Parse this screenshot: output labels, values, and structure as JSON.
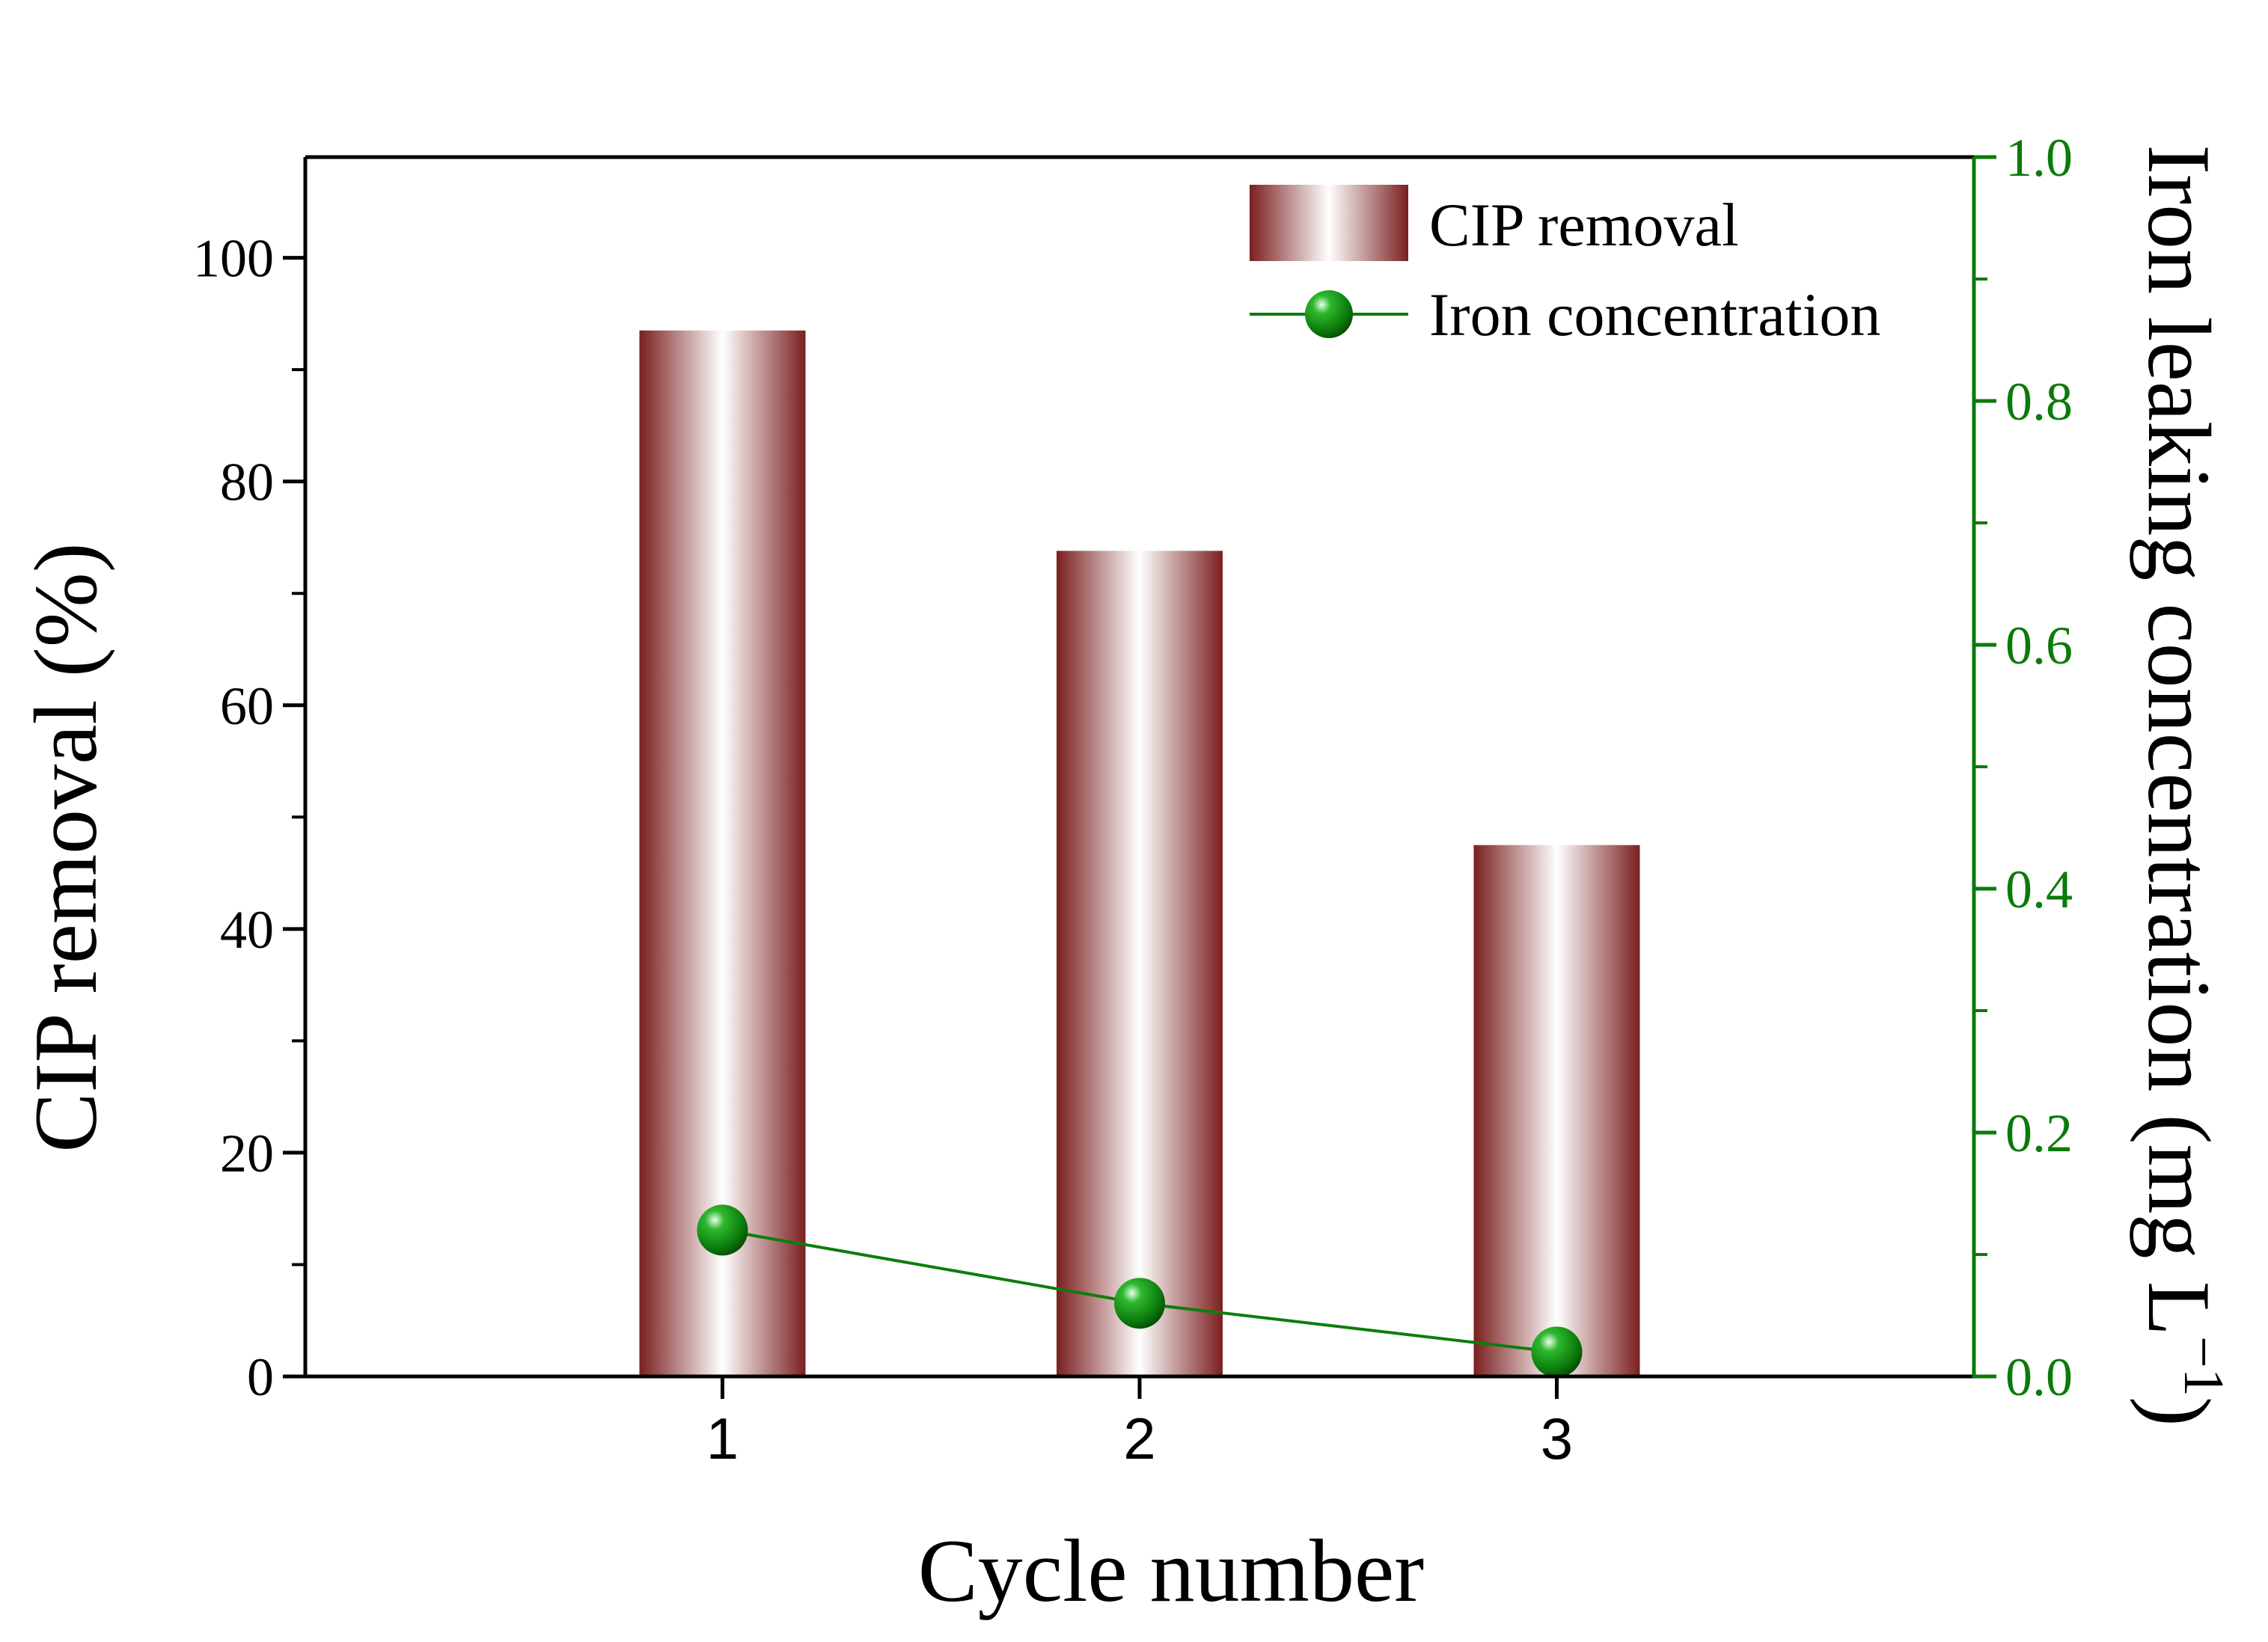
{
  "chart_data": {
    "type": "bar",
    "categories": [
      "1",
      "2",
      "3"
    ],
    "series": [
      {
        "name": "CIP removal",
        "type": "bar",
        "axis": "left",
        "values": [
          93.5,
          73.8,
          47.5
        ]
      },
      {
        "name": "Iron concentration",
        "type": "line",
        "axis": "right",
        "values": [
          0.12,
          0.06,
          0.02
        ]
      }
    ],
    "xlabel": "Cycle number",
    "ylabel": "CIP removal  (%)",
    "y2label": "Iron leaking concentration (mg L",
    "y2label_sup": "−1",
    "y2label_close": ")",
    "xlim": [
      0,
      4
    ],
    "ylim": [
      0,
      109
    ],
    "y2lim": [
      0,
      1.0
    ],
    "yticks": [
      0,
      20,
      40,
      60,
      80,
      100
    ],
    "ytick_labels": [
      "0",
      "20",
      "40",
      "60",
      "80",
      "100"
    ],
    "y2ticks": [
      0.0,
      0.2,
      0.4,
      0.6,
      0.8,
      1.0
    ],
    "y2tick_labels": [
      "0.0",
      "0.2",
      "0.4",
      "0.6",
      "0.8",
      "1.0"
    ],
    "legend_position": "top-right",
    "colors": {
      "bar_edge": "#7b1f1f",
      "bar_center": "#ffffff",
      "line": "#0d7d0d",
      "marker": "#0a8a0a",
      "right_axis": "#0b7a0b",
      "axis": "#000000"
    }
  }
}
